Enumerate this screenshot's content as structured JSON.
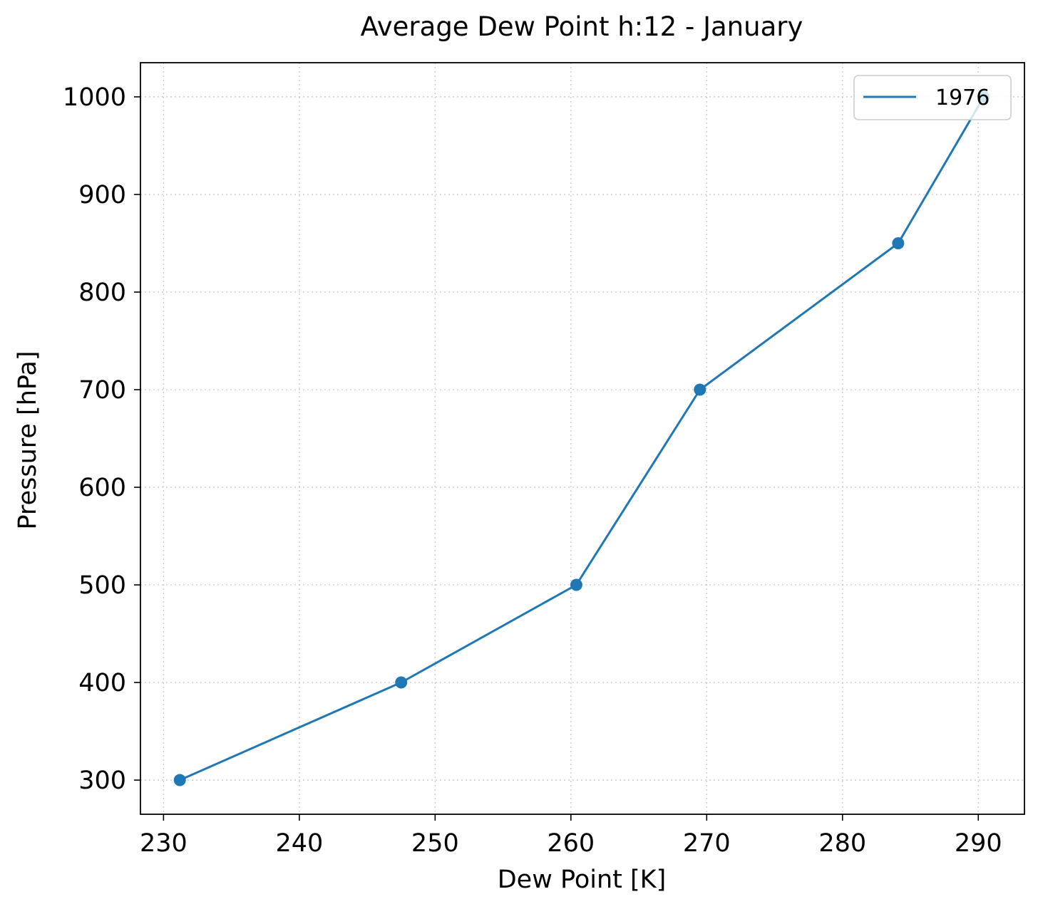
{
  "chart_data": {
    "type": "line",
    "title": "Average Dew Point h:12 - January",
    "xlabel": "Dew Point [K]",
    "ylabel": "Pressure [hPa]",
    "xlim": [
      228.3,
      293.4
    ],
    "ylim": [
      1035,
      265
    ],
    "y_inverted": true,
    "grid": true,
    "legend_position": "top-right",
    "xticks": [
      230,
      240,
      250,
      260,
      270,
      280,
      290
    ],
    "yticks": [
      300,
      400,
      500,
      600,
      700,
      800,
      900,
      1000
    ],
    "xtick_labels": [
      "230",
      "240",
      "250",
      "260",
      "270",
      "280",
      "290"
    ],
    "ytick_labels": [
      "300",
      "400",
      "500",
      "600",
      "700",
      "800",
      "900",
      "1000"
    ],
    "series": [
      {
        "name": "1976",
        "color": "#1f77b4",
        "marker": "circle",
        "x": [
          231.2,
          247.5,
          260.4,
          269.5,
          284.1,
          290.4
        ],
        "y": [
          300,
          400,
          500,
          700,
          850,
          1000
        ]
      }
    ]
  }
}
